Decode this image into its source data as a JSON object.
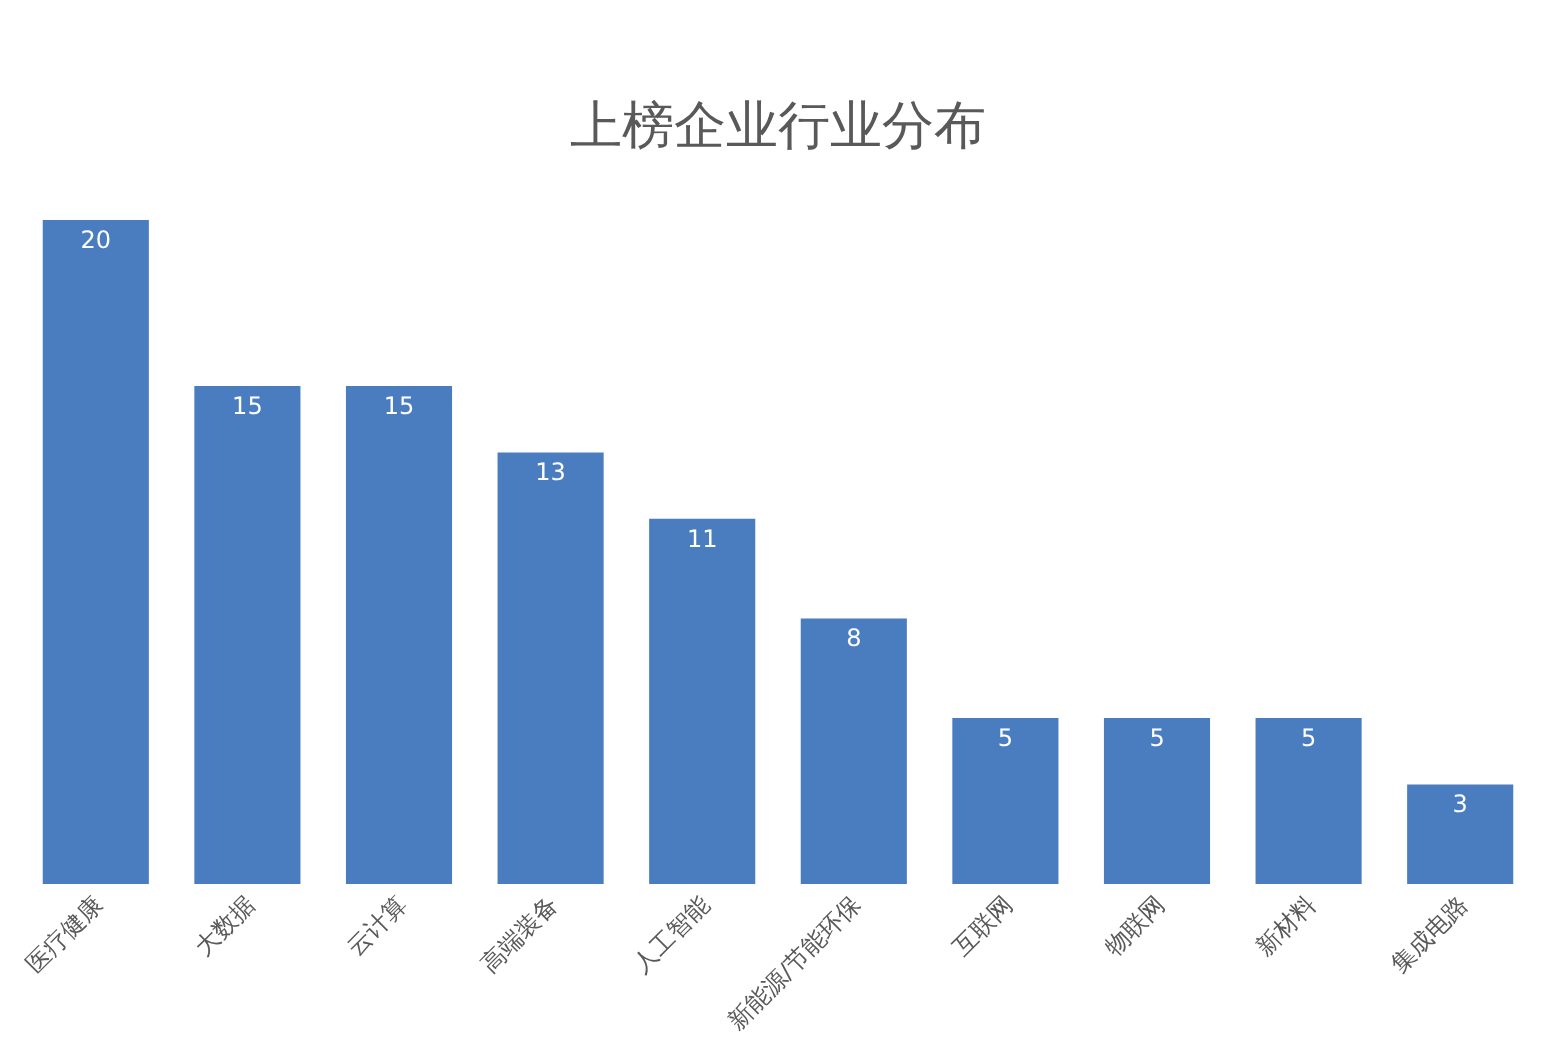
{
  "chart_data": {
    "type": "bar",
    "title": "上榜企业行业分布",
    "categories": [
      "医疗健康",
      "大数据",
      "云计算",
      "高端装备",
      "人工智能",
      "新能源/节能环保",
      "互联网",
      "物联网",
      "新材料",
      "集成电路"
    ],
    "values": [
      20,
      15,
      15,
      13,
      11,
      8,
      5,
      5,
      5,
      3
    ],
    "color": "#4a7dbf",
    "data_labels": true
  }
}
